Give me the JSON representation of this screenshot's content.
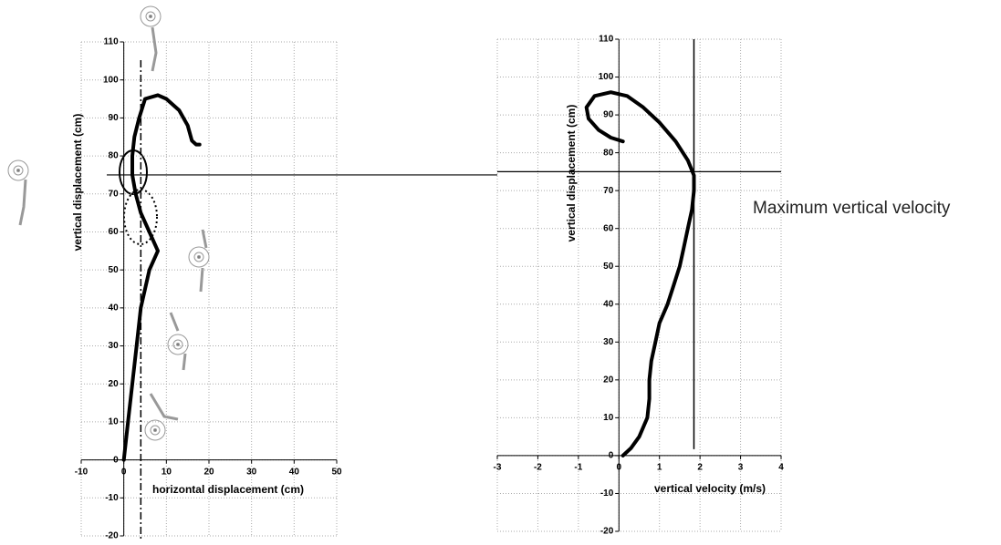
{
  "chart_data": [
    {
      "type": "line",
      "xlabel": "horizontal displacement (cm)",
      "ylabel": "vertical displacement (cm)",
      "xlim": [
        -10,
        50
      ],
      "xticks": [
        -10,
        0,
        10,
        20,
        30,
        40,
        50
      ],
      "ylim": [
        -20,
        110
      ],
      "yticks": [
        -20,
        -10,
        0,
        10,
        20,
        30,
        40,
        50,
        60,
        70,
        80,
        90,
        100,
        110
      ],
      "grid": true,
      "color": "#000000",
      "x": [
        0,
        1,
        2,
        3,
        4,
        6,
        8,
        6,
        4,
        2.8,
        2,
        2,
        2.5,
        3.6,
        5,
        8,
        10,
        13,
        15,
        16,
        17,
        17.8
      ],
      "values": [
        0,
        10,
        20,
        30,
        40,
        50,
        55,
        60,
        65,
        70,
        75,
        80,
        85,
        90,
        95,
        96,
        95,
        92,
        88,
        84,
        83,
        83
      ],
      "vline": {
        "x": 4,
        "style": "dashdot"
      },
      "hline": 75
    },
    {
      "type": "line",
      "xlabel": "vertical velocity (m/s)",
      "ylabel": "vertical displacement (cm)",
      "xlim": [
        -3,
        4
      ],
      "xticks": [
        -3,
        -2,
        -1,
        0,
        1,
        2,
        3,
        4
      ],
      "ylim": [
        -20,
        110
      ],
      "yticks": [
        -20,
        -10,
        0,
        10,
        20,
        30,
        40,
        50,
        60,
        70,
        80,
        90,
        100,
        110
      ],
      "grid": true,
      "color": "#000000",
      "x": [
        0.1,
        0.3,
        0.5,
        0.7,
        0.75,
        0.75,
        0.8,
        0.9,
        1.0,
        1.2,
        1.35,
        1.5,
        1.6,
        1.7,
        1.8,
        1.85,
        1.85,
        1.7,
        1.4,
        1.0,
        0.6,
        0.2,
        -0.2,
        -0.6,
        -0.8,
        -0.75,
        -0.5,
        -0.2,
        0.1
      ],
      "values": [
        0,
        2,
        5,
        10,
        15,
        20,
        25,
        30,
        35,
        40,
        45,
        50,
        55,
        60,
        65,
        70,
        74,
        78,
        83,
        88,
        92,
        95,
        96,
        95,
        92,
        89,
        86,
        84,
        83
      ],
      "vline": {
        "x": 1.85,
        "style": "solid"
      },
      "hline": 75,
      "annotation": "Maximum vertical velocity"
    }
  ]
}
